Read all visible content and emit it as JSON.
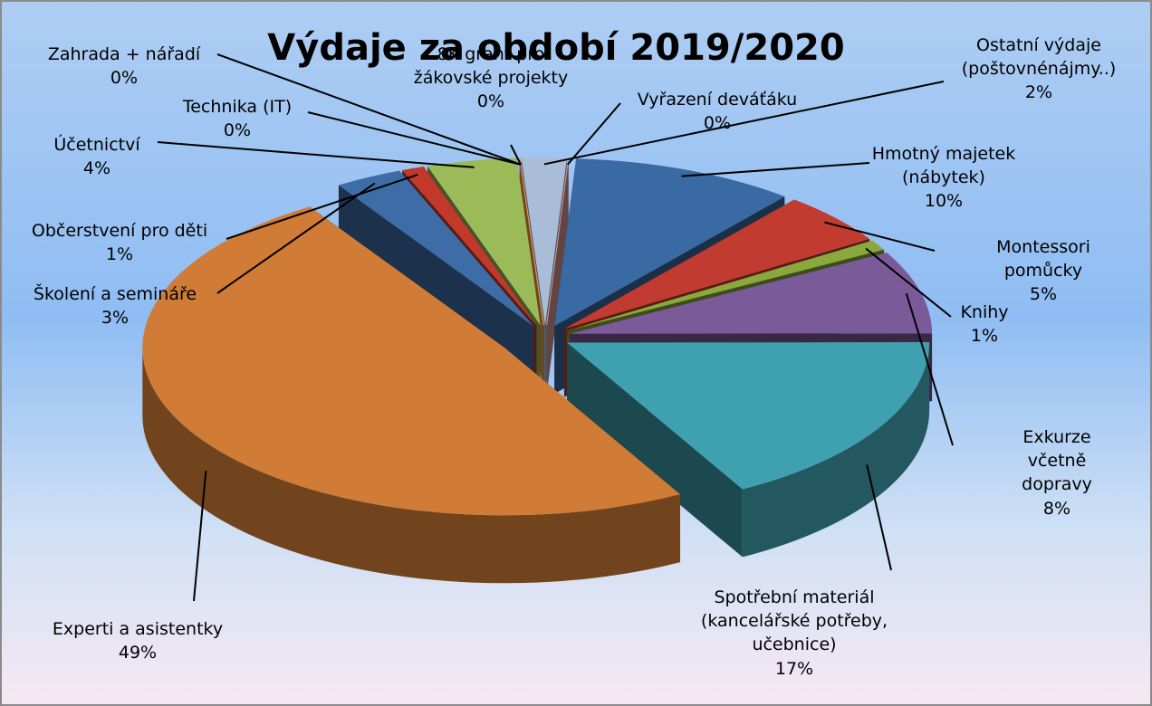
{
  "chart_data": {
    "type": "pie",
    "title": "Výdaje za období 2019/2020",
    "categories": [
      "Hmotný majetek\n(nábytek)",
      "Montessori pomůcky",
      "Knihy",
      "Exkurze včetně\ndopravy",
      "Spotřební materiál\n(kancelářské potřeby,\nučebnice)",
      "Experti a asistentky",
      "Školení a semináře",
      "Občerstvení pro děti",
      "Účetnictví",
      "Technika (IT)",
      "Zahrada + nářadí",
      "8K grant pro\nžákovské projekty",
      "Ostatní výdaje\n(poštovnénájmy..)",
      "Vyřazení deváťáku"
    ],
    "values": [
      10,
      5,
      1,
      8,
      17,
      49,
      3,
      1,
      4,
      0,
      0,
      0,
      2,
      0
    ],
    "value_labels": [
      "10%",
      "5%",
      "1%",
      "8%",
      "17%",
      "49%",
      "3%",
      "1%",
      "4%",
      "0%",
      "0%",
      "0%",
      "2%",
      "0%"
    ],
    "colors": [
      "#3a6aa3",
      "#c23b30",
      "#8aa83c",
      "#7b5a9a",
      "#3fa0b0",
      "#d07b36",
      "#3e6ca6",
      "#c0392b",
      "#9bbb59",
      "#7f64a2",
      "#4bacc6",
      "#f79646",
      "#a9bcd8",
      "#d99694"
    ]
  }
}
